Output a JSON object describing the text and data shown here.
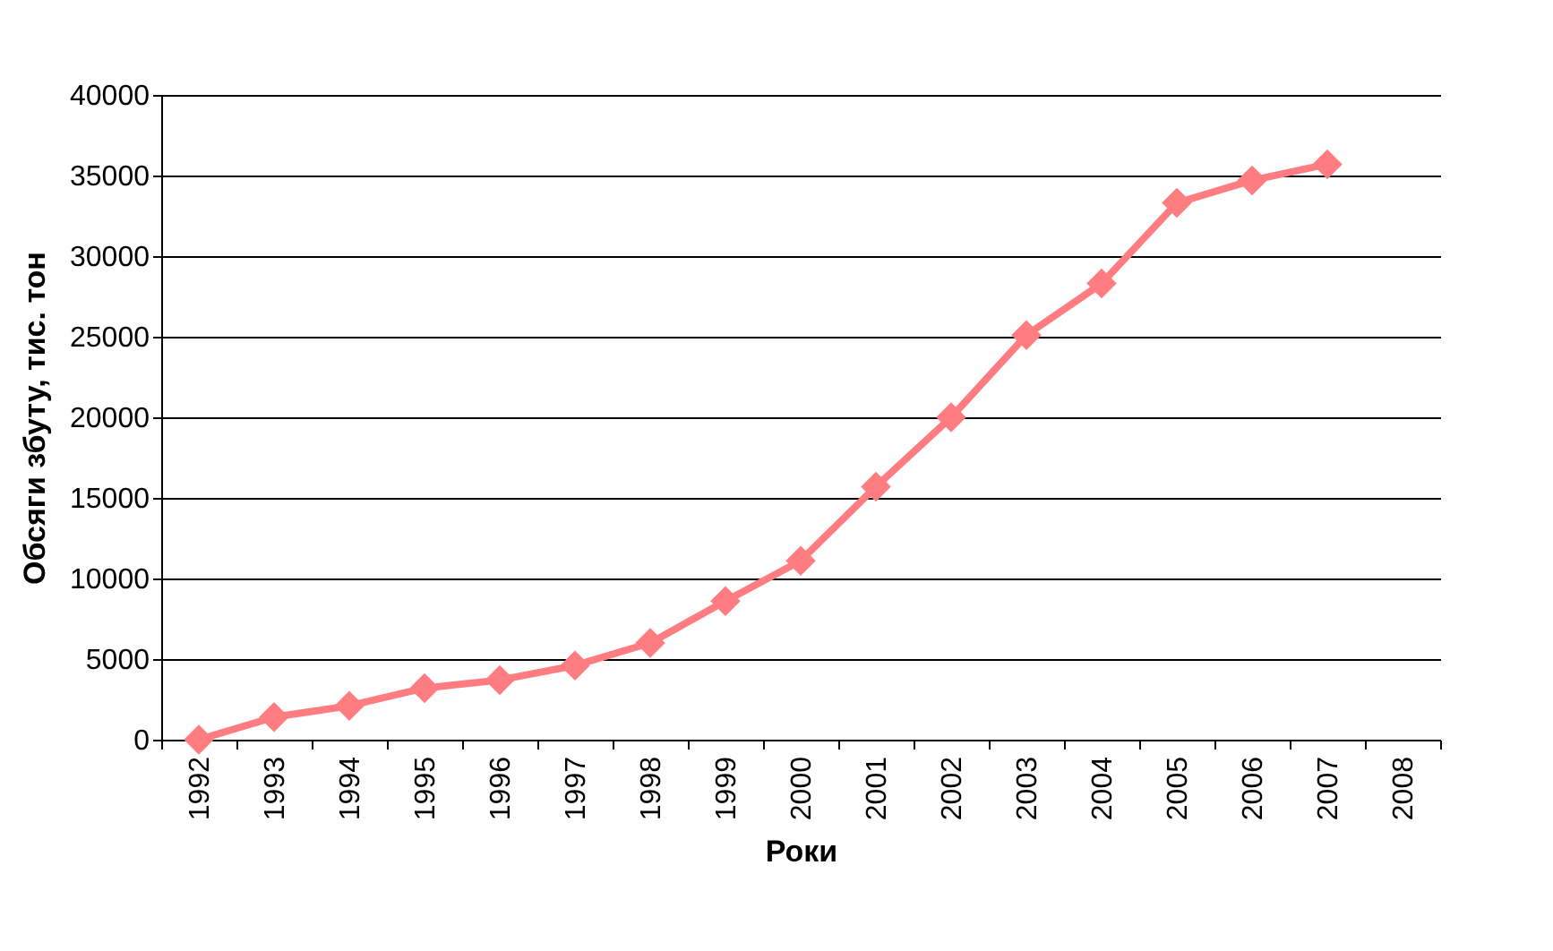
{
  "chart_data": {
    "type": "line",
    "xlabel": "Роки",
    "ylabel": "Обсяги збуту, тис. тон",
    "categories": [
      "1992",
      "1993",
      "1994",
      "1995",
      "1996",
      "1997",
      "1998",
      "1999",
      "2000",
      "2001",
      "2002",
      "2003",
      "2004",
      "2005",
      "2006",
      "2007",
      "2008"
    ],
    "series": [
      {
        "color": "#ff7c80",
        "values": [
          0,
          1400,
          2100,
          3200,
          3700,
          4600,
          6000,
          8600,
          11100,
          15700,
          20000,
          25100,
          28300,
          33300,
          34700,
          35700,
          null
        ]
      }
    ],
    "ylim": [
      0,
      40000
    ],
    "yticks": [
      0,
      5000,
      10000,
      15000,
      20000,
      25000,
      30000,
      35000,
      40000
    ],
    "grid": "y",
    "marker": "diamond",
    "line_style": "solid"
  }
}
